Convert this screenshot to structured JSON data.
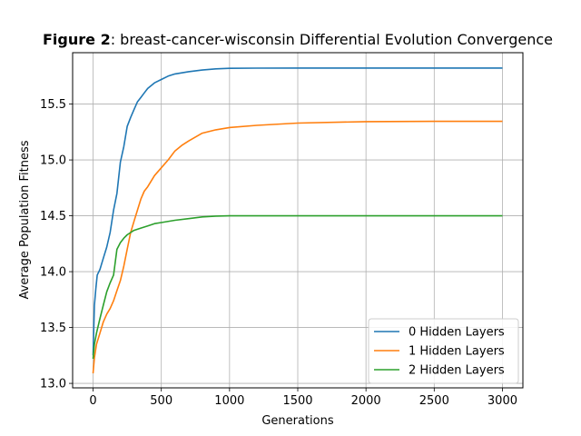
{
  "chart_data": {
    "type": "line",
    "title_bold": "Figure 2",
    "title_rest": ": breast-cancer-wisconsin Differential Evolution Convergence",
    "xlabel": "Generations",
    "ylabel": "Average Population Fitness",
    "xlim": [
      -150,
      3150
    ],
    "ylim": [
      12.96,
      15.96
    ],
    "xticks": [
      0,
      500,
      1000,
      1500,
      2000,
      2500,
      3000
    ],
    "yticks": [
      13.0,
      13.5,
      14.0,
      14.5,
      15.0,
      15.5
    ],
    "xtick_labels": [
      "0",
      "500",
      "1000",
      "1500",
      "2000",
      "2500",
      "3000"
    ],
    "ytick_labels": [
      "13.0",
      "13.5",
      "14.0",
      "14.5",
      "15.0",
      "15.5"
    ],
    "grid": true,
    "legend_position": "lower-right",
    "series": [
      {
        "name": "0 Hidden Layers",
        "color": "#1f77b4",
        "x": [
          0,
          10,
          20,
          30,
          50,
          75,
          100,
          125,
          150,
          175,
          200,
          225,
          250,
          275,
          300,
          325,
          350,
          375,
          400,
          450,
          500,
          550,
          600,
          700,
          800,
          900,
          1000,
          1200,
          1500,
          2000,
          2500,
          3000
        ],
        "y": [
          13.25,
          13.7,
          13.85,
          13.97,
          14.02,
          14.12,
          14.22,
          14.35,
          14.55,
          14.7,
          14.98,
          15.12,
          15.3,
          15.38,
          15.45,
          15.52,
          15.56,
          15.6,
          15.64,
          15.69,
          15.72,
          15.75,
          15.77,
          15.79,
          15.805,
          15.815,
          15.82,
          15.822,
          15.823,
          15.823,
          15.823,
          15.823
        ]
      },
      {
        "name": "1 Hidden Layers",
        "color": "#ff7f0e",
        "x": [
          0,
          10,
          25,
          50,
          75,
          100,
          125,
          150,
          175,
          200,
          225,
          250,
          275,
          300,
          325,
          350,
          375,
          400,
          450,
          500,
          550,
          600,
          650,
          700,
          800,
          900,
          1000,
          1200,
          1500,
          2000,
          2500,
          3000
        ],
        "y": [
          13.09,
          13.23,
          13.35,
          13.45,
          13.55,
          13.62,
          13.67,
          13.74,
          13.83,
          13.92,
          14.05,
          14.2,
          14.35,
          14.45,
          14.55,
          14.65,
          14.72,
          14.76,
          14.86,
          14.93,
          15.0,
          15.08,
          15.13,
          15.17,
          15.24,
          15.27,
          15.29,
          15.31,
          15.33,
          15.343,
          15.345,
          15.345
        ]
      },
      {
        "name": "2 Hidden Layers",
        "color": "#2ca02c",
        "x": [
          0,
          10,
          25,
          50,
          75,
          100,
          125,
          150,
          175,
          200,
          225,
          250,
          275,
          300,
          350,
          400,
          450,
          500,
          600,
          700,
          800,
          900,
          1000,
          1200,
          1500,
          2000,
          2500,
          3000
        ],
        "y": [
          13.22,
          13.35,
          13.45,
          13.58,
          13.7,
          13.82,
          13.9,
          13.97,
          14.2,
          14.26,
          14.3,
          14.33,
          14.35,
          14.37,
          14.39,
          14.41,
          14.43,
          14.44,
          14.46,
          14.475,
          14.49,
          14.497,
          14.5,
          14.5,
          14.5,
          14.5,
          14.5,
          14.5
        ]
      }
    ]
  }
}
